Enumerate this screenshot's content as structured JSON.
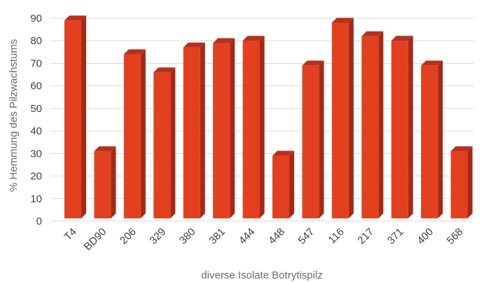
{
  "chart_data": {
    "type": "bar",
    "title": "",
    "xlabel": "diverse Isolate Botrytispilz",
    "ylabel": "% Hemmung des Pilzwachstums",
    "categories": [
      "T4",
      "BD90",
      "206",
      "329",
      "380",
      "381",
      "444",
      "448",
      "547",
      "116",
      "217",
      "371",
      "400",
      "568"
    ],
    "values": [
      89,
      31,
      74,
      66,
      77,
      79,
      80,
      29,
      69,
      88,
      82,
      80,
      69,
      31
    ],
    "ylim": [
      0,
      90
    ],
    "yticks": [
      0,
      10,
      20,
      30,
      40,
      50,
      60,
      70,
      80,
      90
    ],
    "grid": true,
    "legend": "none",
    "style": "3d-bar",
    "colors": {
      "bar_front": "#e2401f",
      "bar_side": "#a52a15",
      "bar_top": "#b8301a",
      "grid": "#d9d9d9"
    }
  }
}
